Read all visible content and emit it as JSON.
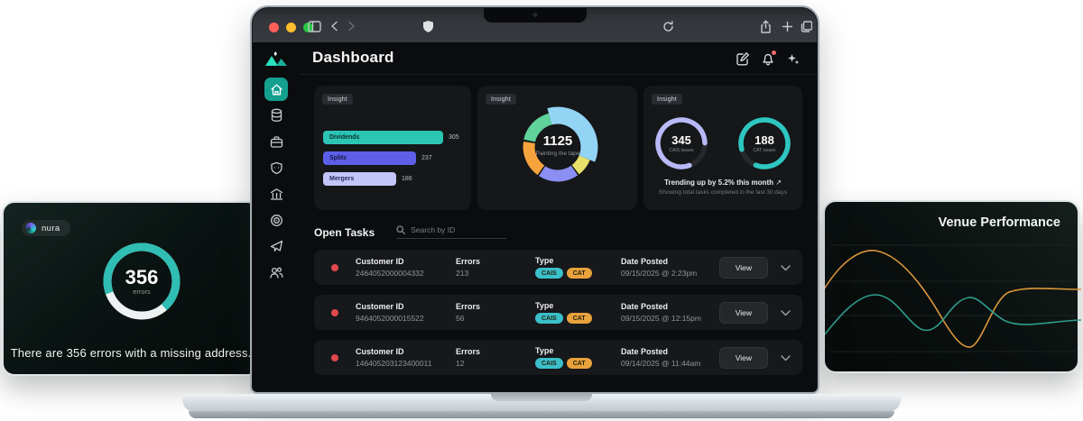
{
  "left_card": {
    "brand": "nura",
    "donut": {
      "value": "356",
      "label": "errors",
      "percent": 69,
      "color": "#2fbdb4",
      "track": "#eef1f2"
    },
    "caption": "There are 356 errors with a missing address."
  },
  "right_card": {
    "title": "Venue Performance",
    "chart": {
      "type": "line",
      "series": [
        {
          "name": "series-orange",
          "color": "#dd973a"
        },
        {
          "name": "series-teal",
          "color": "#2f9c8d"
        }
      ],
      "grid": true
    }
  },
  "browser": {
    "traffic_lights": [
      "#ff5f57",
      "#febc2e",
      "#28c840"
    ],
    "icons": [
      "sidebar-toggle",
      "back",
      "forward",
      "shield",
      "reload",
      "share",
      "new-tab",
      "tabs-overview"
    ]
  },
  "app": {
    "sidebar": {
      "items": [
        "home",
        "database",
        "briefcase",
        "shield",
        "bank",
        "target",
        "send",
        "users"
      ]
    },
    "header": {
      "title": "Dashboard",
      "icons": [
        "compose",
        "notifications",
        "sparkles"
      ]
    },
    "insights": [
      {
        "label": "Insight",
        "type": "bar",
        "max": 305,
        "bars": [
          {
            "name": "Dividends",
            "value": 305,
            "color": "#2cc5b4",
            "label_color": "#0b2f2a"
          },
          {
            "name": "Splits",
            "value": 237,
            "color": "#5d5fe8",
            "label_color": "#14163f"
          },
          {
            "name": "Mergers",
            "value": 186,
            "color": "#c4c5f9",
            "label_color": "#2a2c63"
          }
        ]
      },
      {
        "label": "Insight",
        "type": "donut",
        "total": "1125",
        "subtitle": "Painting the tape",
        "segments": [
          {
            "name": "sky",
            "percent": 35,
            "color": "#93d4f5"
          },
          {
            "name": "yellow",
            "percent": 8,
            "color": "#e8e06a"
          },
          {
            "name": "indigo",
            "percent": 20,
            "color": "#8b8ef2"
          },
          {
            "name": "orange",
            "percent": 18,
            "color": "#f5a33c"
          },
          {
            "name": "green",
            "percent": 19,
            "color": "#5fd39a"
          }
        ]
      },
      {
        "label": "Insight",
        "type": "gauges",
        "gauges": [
          {
            "value": "345",
            "label": "CAIS issues",
            "percent": 80,
            "color": "#b7baf7"
          },
          {
            "value": "188",
            "label": "CAT issues",
            "percent": 85,
            "color": "#2ec6c0"
          }
        ],
        "trend": "Trending up by 5.2% this month",
        "trend_arrow": "↗",
        "trend_sub": "Showing total tasks completed in the last 30 days"
      }
    ],
    "tasks": {
      "title": "Open Tasks",
      "search_placeholder": "Search by ID",
      "columns": [
        "Customer ID",
        "Errors",
        "Type",
        "Date Posted"
      ],
      "view_label": "View",
      "badge_colors": {
        "CAIS": "#3bc0ca",
        "CAT": "#e9a23c"
      },
      "rows": [
        {
          "id": "2464052000004332",
          "errors": "213",
          "types": [
            "CAIS",
            "CAT"
          ],
          "date": "09/15/2025 @ 2:23pm"
        },
        {
          "id": "9464052000015522",
          "errors": "56",
          "types": [
            "CAIS",
            "CAT"
          ],
          "date": "09/15/2025 @ 12:15pm"
        },
        {
          "id": "146405203123400011",
          "errors": "12",
          "types": [
            "CAIS",
            "CAT"
          ],
          "date": "09/14/2025 @ 11:44am"
        }
      ]
    }
  }
}
